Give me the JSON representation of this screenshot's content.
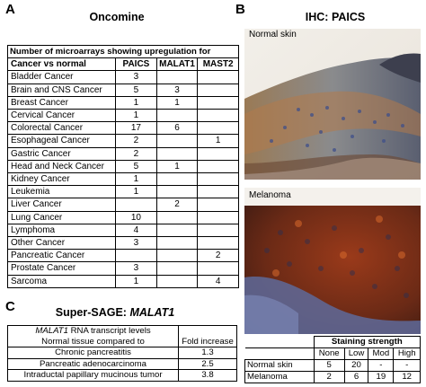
{
  "panels": {
    "a": {
      "letter": "A",
      "title": "Oncomine"
    },
    "b": {
      "letter": "B",
      "title": "IHC: PAICS"
    },
    "c": {
      "letter": "C",
      "title_prefix": "Super-SAGE: ",
      "title_gene": "MALAT1"
    }
  },
  "table_a": {
    "header": "Number of microarrays showing upregulation for",
    "columns": [
      "Cancer vs normal",
      "PAICS",
      "MALAT1",
      "MAST2"
    ],
    "rows": [
      [
        "Bladder Cancer",
        "3",
        "",
        ""
      ],
      [
        "Brain and CNS Cancer",
        "5",
        "3",
        ""
      ],
      [
        "Breast Cancer",
        "1",
        "1",
        ""
      ],
      [
        "Cervical Cancer",
        "1",
        "",
        ""
      ],
      [
        "Colorectal Cancer",
        "17",
        "6",
        ""
      ],
      [
        "Esophageal Cancer",
        "2",
        "",
        "1"
      ],
      [
        "Gastric Cancer",
        "2",
        "",
        ""
      ],
      [
        "Head and Neck Cancer",
        "5",
        "1",
        ""
      ],
      [
        "Kidney Cancer",
        "1",
        "",
        ""
      ],
      [
        "Leukemia",
        "1",
        "",
        ""
      ],
      [
        "Liver Cancer",
        "",
        "2",
        ""
      ],
      [
        "Lung Cancer",
        "10",
        "",
        ""
      ],
      [
        "Lymphoma",
        "4",
        "",
        ""
      ],
      [
        "Other Cancer",
        "3",
        "",
        ""
      ],
      [
        "Pancreatic Cancer",
        "",
        "",
        "2"
      ],
      [
        "Prostate Cancer",
        "3",
        "",
        ""
      ],
      [
        "Sarcoma",
        "1",
        "",
        "4"
      ]
    ]
  },
  "panel_b": {
    "normal_label": "Normal skin",
    "melanoma_label": "Melanoma",
    "table": {
      "header": "Staining strength",
      "columns": [
        "None",
        "Low",
        "Mod",
        "High"
      ],
      "rows": [
        [
          "Normal skin",
          "5",
          "20",
          "-",
          "-"
        ],
        [
          "Melanoma",
          "2",
          "6",
          "19",
          "12"
        ]
      ]
    }
  },
  "table_c": {
    "header_gene": "MALAT1",
    "header_rest": " RNA transcript levels",
    "subheader": "Normal tissue compared to",
    "value_header": "Fold increase",
    "rows": [
      [
        "Chronic pancreatitis",
        "1.3"
      ],
      [
        "Pancreatic adenocarcinoma",
        "2.5"
      ],
      [
        "Intraductal papillary mucinous tumor",
        "3.8"
      ]
    ]
  }
}
